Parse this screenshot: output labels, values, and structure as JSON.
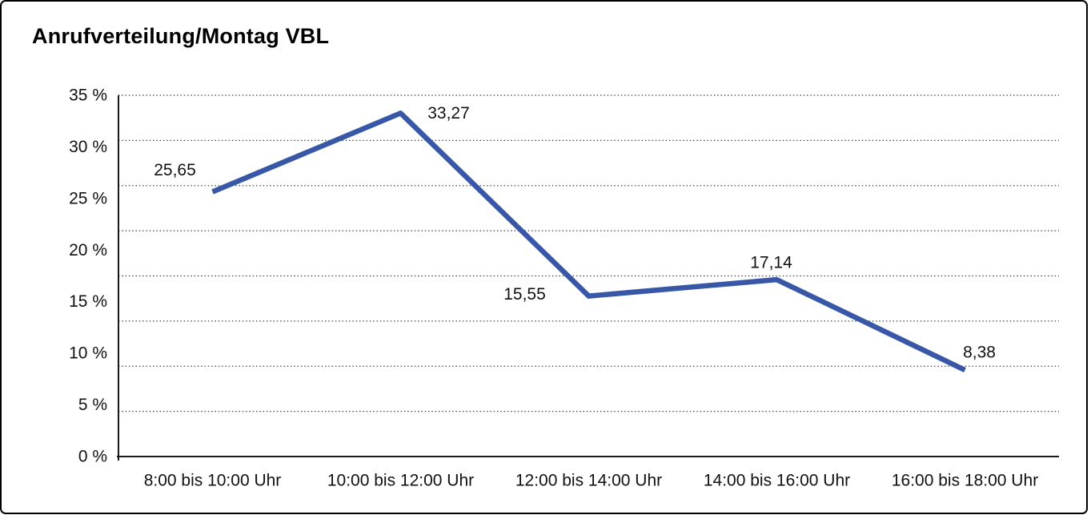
{
  "chart_data": {
    "type": "line",
    "title": "Anrufverteilung/Montag VBL",
    "categories": [
      "8:00 bis 10:00 Uhr",
      "10:00 bis 12:00 Uhr",
      "12:00 bis 14:00 Uhr",
      "14:00 bis 16:00 Uhr",
      "16:00 bis 18:00 Uhr"
    ],
    "series": [
      {
        "name": "Anrufverteilung Montag VBL",
        "values": [
          25.65,
          33.27,
          15.55,
          17.14,
          8.38
        ]
      }
    ],
    "point_labels": [
      "25,65",
      "33,27",
      "15,55",
      "17,14",
      "8,38"
    ],
    "xlabel": "",
    "ylabel": "",
    "ylim": [
      0,
      35
    ],
    "y_tick_values": [
      0,
      5,
      10,
      15,
      20,
      25,
      30,
      35
    ],
    "y_tick_labels": [
      "0 %",
      "5 %",
      "10 %",
      "15 %",
      "20 %",
      "25 %",
      "30 %",
      "35 %"
    ],
    "gridlines": {
      "horizontal_count": 9,
      "style": "dotted",
      "vertical": false
    },
    "legend": {
      "visible": false
    },
    "colors": {
      "line": "#3857A6",
      "axis": "#1a1a1a",
      "grid": "#444444",
      "text": "#111111",
      "background": "#ffffff",
      "border": "#000000"
    }
  }
}
